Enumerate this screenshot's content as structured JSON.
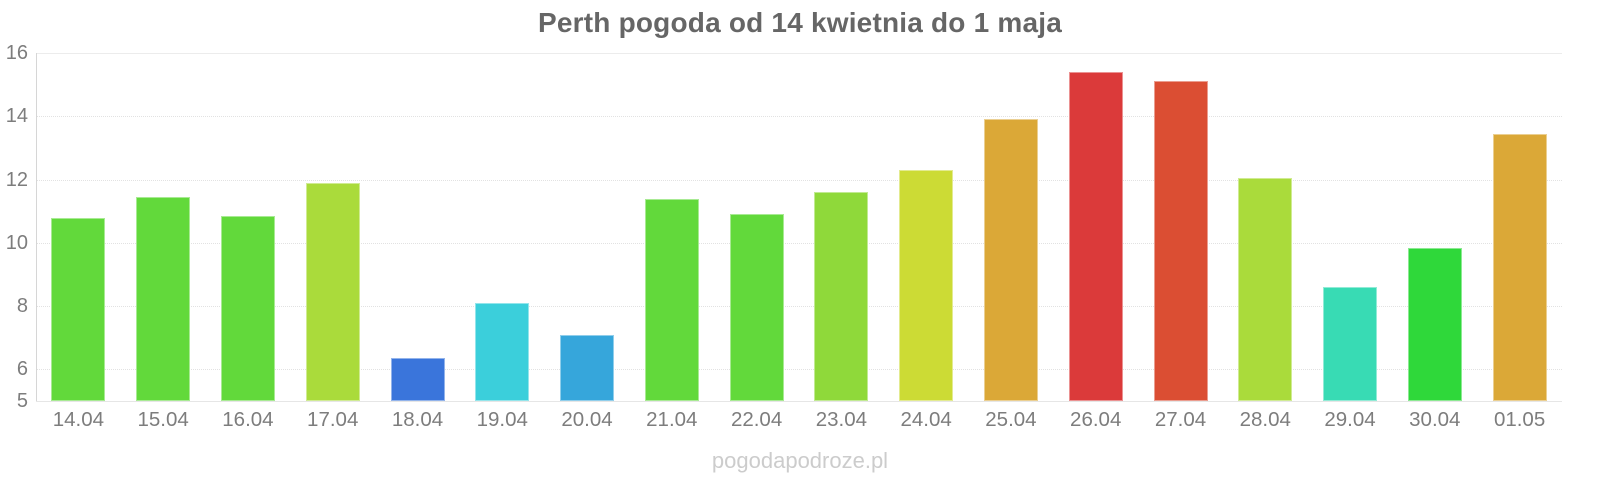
{
  "title": "Perth pogoda od 14 kwietnia do 1 maja",
  "watermark": "pogodapodroze.pl",
  "chart_data": {
    "type": "bar",
    "title": "Perth pogoda od 14 kwietnia do 1 maja",
    "categories": [
      "14.04",
      "15.04",
      "16.04",
      "17.04",
      "18.04",
      "19.04",
      "20.04",
      "21.04",
      "22.04",
      "23.04",
      "24.04",
      "25.04",
      "26.04",
      "27.04",
      "28.04",
      "29.04",
      "30.04",
      "01.05"
    ],
    "values": [
      10.8,
      11.45,
      10.85,
      11.9,
      6.35,
      8.1,
      7.1,
      11.4,
      10.9,
      11.6,
      12.3,
      13.9,
      15.4,
      15.1,
      12.05,
      8.6,
      9.85,
      13.45
    ],
    "bar_colors": [
      "#62D93B",
      "#62D93B",
      "#62D93B",
      "#AADB3B",
      "#3A75DB",
      "#3BCFDB",
      "#36A6DB",
      "#62D93B",
      "#62D93B",
      "#8FD93A",
      "#CCDB35",
      "#DBA837",
      "#DB3A3A",
      "#DB4E33",
      "#AADB3B",
      "#38DBB4",
      "#2FD83A",
      "#DBA837"
    ],
    "xlabel": "",
    "ylabel": "",
    "ylim": [
      5,
      16
    ],
    "yticks": [
      5,
      6,
      8,
      10,
      12,
      14,
      16
    ],
    "ytick_labels": [
      "5",
      "6",
      "8",
      "10",
      "12",
      "14",
      "16"
    ],
    "grid": "horizontal-dotted",
    "legend": "none"
  }
}
